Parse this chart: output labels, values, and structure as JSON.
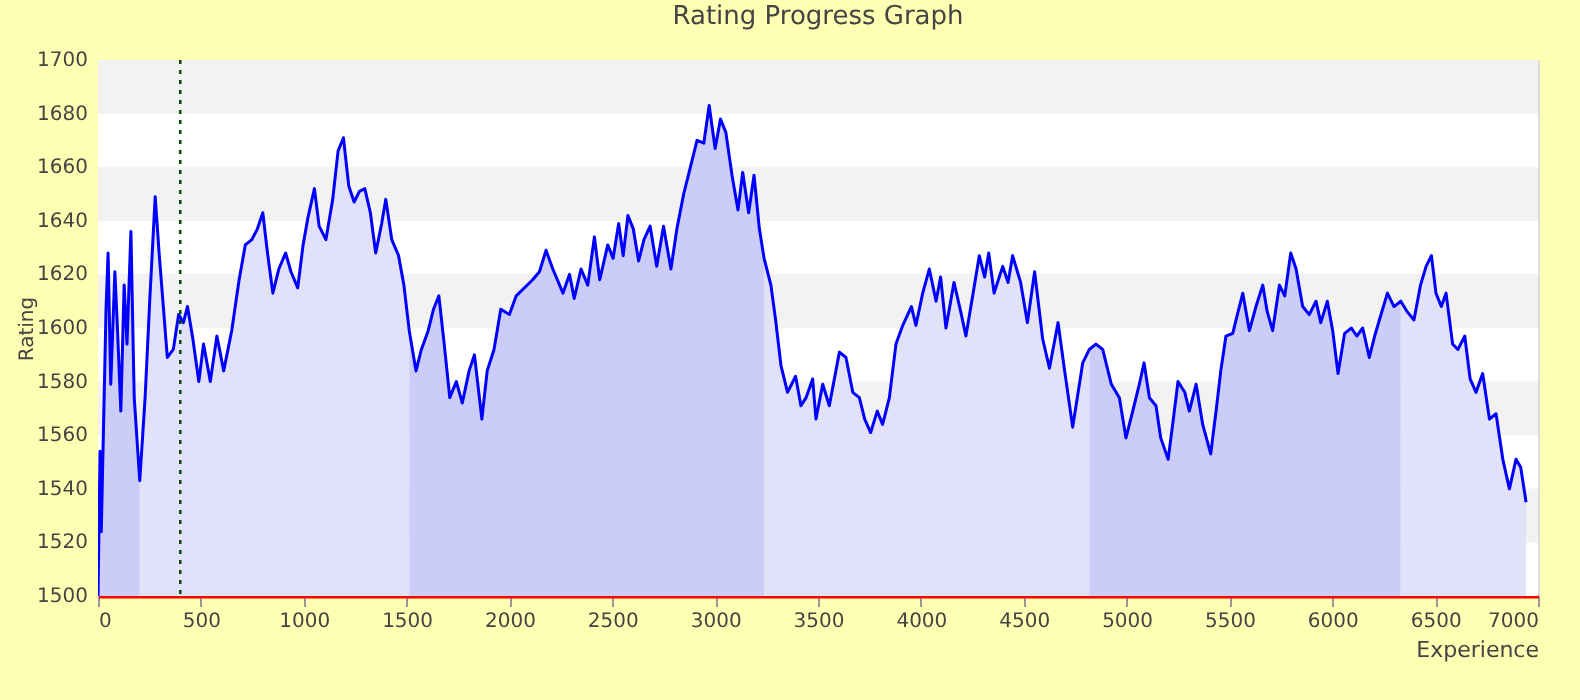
{
  "chart_data": {
    "type": "line",
    "title": "Rating Progress Graph",
    "xlabel": "Experience",
    "ylabel": "Rating",
    "xlim": [
      0,
      7000
    ],
    "xticks": [
      0,
      500,
      1000,
      1500,
      2000,
      2500,
      3000,
      3500,
      4000,
      4500,
      5000,
      5500,
      6000,
      6500,
      7000
    ],
    "ylim": [
      1500,
      1700
    ],
    "yticks": [
      1500,
      1520,
      1540,
      1560,
      1580,
      1600,
      1620,
      1640,
      1660,
      1680,
      1700
    ],
    "grid": "y",
    "marker": "none",
    "line_style": "solid",
    "ref_lines": [
      {
        "axis": "x",
        "value": 400,
        "color": "#004400",
        "line_style": "dotted"
      }
    ],
    "series": [
      {
        "type": "area",
        "color": "#ccccf9",
        "x": [
          0,
          10,
          16,
          39,
          49,
          62,
          82,
          95,
          111,
          127,
          141,
          160,
          176,
          203
        ],
        "values": [
          1500,
          1554,
          1524,
          1607,
          1628,
          1579,
          1621,
          1599,
          1569,
          1616,
          1594,
          1636,
          1574,
          1543
        ]
      },
      {
        "type": "area",
        "color": "#e1e1fa",
        "x": [
          203,
          229,
          252,
          278,
          297,
          337,
          366,
          392,
          415,
          435,
          461,
          490,
          513,
          546,
          578,
          611,
          650,
          686,
          716,
          748,
          775,
          801,
          824,
          850,
          879,
          912,
          938,
          971,
          997,
          1020,
          1052,
          1075,
          1108,
          1141,
          1167,
          1193,
          1219,
          1245,
          1271,
          1297,
          1324,
          1350,
          1379,
          1399,
          1428,
          1461,
          1487,
          1513
        ],
        "values": [
          1543,
          1574,
          1611,
          1649,
          1628,
          1589,
          1592,
          1605,
          1602,
          1608,
          1596,
          1580,
          1594,
          1580,
          1597,
          1584,
          1599,
          1618,
          1631,
          1633,
          1637,
          1643,
          1628,
          1613,
          1622,
          1628,
          1621,
          1615,
          1631,
          1641,
          1652,
          1638,
          1633,
          1648,
          1666,
          1671,
          1653,
          1647,
          1651,
          1652,
          1643,
          1628,
          1639,
          1648,
          1633,
          1627,
          1616,
          1599
        ]
      },
      {
        "type": "area",
        "color": "#ccccf9",
        "x": [
          1513,
          1546,
          1572,
          1605,
          1631,
          1657,
          1683,
          1710,
          1742,
          1771,
          1804,
          1830,
          1866,
          1892,
          1925,
          1958,
          2000,
          2033,
          2113,
          2146,
          2178,
          2211,
          2260,
          2292,
          2315,
          2348,
          2381,
          2413,
          2439,
          2478,
          2504,
          2531,
          2553,
          2576,
          2602,
          2628,
          2654,
          2684,
          2716,
          2749,
          2785,
          2814,
          2847,
          2870,
          2912,
          2945,
          2971,
          3000,
          3026,
          3052,
          3082,
          3111,
          3134,
          3163,
          3189,
          3215,
          3238
        ],
        "values": [
          1599,
          1584,
          1592,
          1599,
          1607,
          1612,
          1594,
          1574,
          1580,
          1572,
          1584,
          1590,
          1566,
          1584,
          1592,
          1607,
          1605,
          1612,
          1618,
          1621,
          1629,
          1622,
          1613,
          1620,
          1611,
          1622,
          1616,
          1634,
          1618,
          1631,
          1626,
          1639,
          1627,
          1642,
          1637,
          1625,
          1633,
          1638,
          1623,
          1638,
          1622,
          1637,
          1650,
          1657,
          1670,
          1669,
          1683,
          1667,
          1678,
          1673,
          1657,
          1644,
          1658,
          1643,
          1657,
          1637,
          1626
        ]
      },
      {
        "type": "area",
        "color": "#e1e1fa",
        "x": [
          3238,
          3271,
          3294,
          3320,
          3352,
          3391,
          3417,
          3442,
          3474,
          3490,
          3523,
          3555,
          3604,
          3636,
          3669,
          3701,
          3727,
          3756,
          3788,
          3814,
          3847,
          3879,
          3912,
          3954,
          3976,
          4009,
          4041,
          4074,
          4096,
          4122,
          4161,
          4194,
          4219,
          4252,
          4284,
          4310,
          4330,
          4356,
          4398,
          4424,
          4446,
          4485,
          4518,
          4553,
          4592,
          4625,
          4667,
          4699,
          4738,
          4787,
          4819
        ],
        "values": [
          1626,
          1616,
          1603,
          1586,
          1576,
          1582,
          1571,
          1574,
          1581,
          1566,
          1579,
          1571,
          1591,
          1589,
          1576,
          1574,
          1566,
          1561,
          1569,
          1564,
          1574,
          1594,
          1601,
          1608,
          1601,
          1613,
          1622,
          1610,
          1619,
          1600,
          1617,
          1606,
          1597,
          1612,
          1627,
          1619,
          1628,
          1613,
          1623,
          1617,
          1627,
          1617,
          1602,
          1621,
          1596,
          1585,
          1602,
          1584,
          1563,
          1587,
          1592
        ]
      },
      {
        "type": "area",
        "color": "#ccccf9",
        "x": [
          4819,
          4851,
          4884,
          4926,
          4965,
          4997,
          5030,
          5062,
          5085,
          5111,
          5143,
          5166,
          5202,
          5224,
          5250,
          5283,
          5305,
          5338,
          5370,
          5409,
          5435,
          5458,
          5483,
          5516,
          5542,
          5565,
          5597,
          5629,
          5662,
          5684,
          5710,
          5743,
          5769,
          5798,
          5824,
          5856,
          5888,
          5921,
          5944,
          5976,
          6002,
          6028,
          6060,
          6093,
          6119,
          6148,
          6180,
          6206,
          6229,
          6268,
          6300,
          6333
        ],
        "values": [
          1592,
          1594,
          1592,
          1579,
          1574,
          1559,
          1569,
          1579,
          1587,
          1574,
          1571,
          1559,
          1551,
          1564,
          1580,
          1576,
          1569,
          1579,
          1564,
          1553,
          1569,
          1584,
          1597,
          1598,
          1606,
          1613,
          1599,
          1608,
          1616,
          1606,
          1599,
          1616,
          1612,
          1628,
          1622,
          1608,
          1605,
          1610,
          1602,
          1610,
          1599,
          1583,
          1598,
          1600,
          1597,
          1600,
          1589,
          1597,
          1603,
          1613,
          1608,
          1610
        ]
      },
      {
        "type": "area",
        "color": "#e1e1fa",
        "x": [
          6333,
          6365,
          6397,
          6429,
          6456,
          6482,
          6504,
          6530,
          6553,
          6585,
          6611,
          6644,
          6670,
          6699,
          6731,
          6764,
          6796,
          6829,
          6861,
          6893,
          6916,
          6942
        ],
        "values": [
          1610,
          1606,
          1603,
          1616,
          1623,
          1627,
          1613,
          1608,
          1613,
          1594,
          1592,
          1597,
          1581,
          1576,
          1583,
          1566,
          1568,
          1551,
          1540,
          1551,
          1548,
          1535
        ]
      },
      {
        "type": "line",
        "color": "#0000ff",
        "x": [
          0,
          10,
          16,
          39,
          49,
          62,
          82,
          95,
          111,
          127,
          141,
          160,
          176,
          203,
          229,
          252,
          278,
          297,
          337,
          366,
          392,
          415,
          435,
          461,
          490,
          513,
          546,
          578,
          611,
          650,
          686,
          716,
          748,
          775,
          801,
          824,
          850,
          879,
          912,
          938,
          971,
          997,
          1020,
          1052,
          1075,
          1108,
          1141,
          1167,
          1193,
          1219,
          1245,
          1271,
          1297,
          1324,
          1350,
          1379,
          1399,
          1428,
          1461,
          1487,
          1513,
          1546,
          1572,
          1605,
          1631,
          1657,
          1683,
          1710,
          1742,
          1771,
          1804,
          1830,
          1866,
          1892,
          1925,
          1958,
          2000,
          2033,
          2113,
          2146,
          2178,
          2211,
          2260,
          2292,
          2315,
          2348,
          2381,
          2413,
          2439,
          2478,
          2504,
          2531,
          2553,
          2576,
          2602,
          2628,
          2654,
          2684,
          2716,
          2749,
          2785,
          2814,
          2847,
          2870,
          2912,
          2945,
          2971,
          3000,
          3026,
          3052,
          3082,
          3111,
          3134,
          3163,
          3189,
          3215,
          3238,
          3271,
          3294,
          3320,
          3352,
          3391,
          3417,
          3442,
          3474,
          3490,
          3523,
          3555,
          3604,
          3636,
          3669,
          3701,
          3727,
          3756,
          3788,
          3814,
          3847,
          3879,
          3912,
          3954,
          3976,
          4009,
          4041,
          4074,
          4096,
          4122,
          4161,
          4194,
          4219,
          4252,
          4284,
          4310,
          4330,
          4356,
          4398,
          4424,
          4446,
          4485,
          4518,
          4553,
          4592,
          4625,
          4667,
          4699,
          4738,
          4787,
          4819,
          4851,
          4884,
          4926,
          4965,
          4997,
          5030,
          5062,
          5085,
          5111,
          5143,
          5166,
          5202,
          5224,
          5250,
          5283,
          5305,
          5338,
          5370,
          5409,
          5435,
          5458,
          5483,
          5516,
          5542,
          5565,
          5597,
          5629,
          5662,
          5684,
          5710,
          5743,
          5769,
          5798,
          5824,
          5856,
          5888,
          5921,
          5944,
          5976,
          6002,
          6028,
          6060,
          6093,
          6119,
          6148,
          6180,
          6206,
          6229,
          6268,
          6300,
          6333,
          6365,
          6397,
          6429,
          6456,
          6482,
          6504,
          6530,
          6553,
          6585,
          6611,
          6644,
          6670,
          6699,
          6731,
          6764,
          6796,
          6829,
          6861,
          6893,
          6916,
          6942
        ],
        "values": [
          1500,
          1554,
          1524,
          1607,
          1628,
          1579,
          1621,
          1599,
          1569,
          1616,
          1594,
          1636,
          1574,
          1543,
          1574,
          1611,
          1649,
          1628,
          1589,
          1592,
          1605,
          1602,
          1608,
          1596,
          1580,
          1594,
          1580,
          1597,
          1584,
          1599,
          1618,
          1631,
          1633,
          1637,
          1643,
          1628,
          1613,
          1622,
          1628,
          1621,
          1615,
          1631,
          1641,
          1652,
          1638,
          1633,
          1648,
          1666,
          1671,
          1653,
          1647,
          1651,
          1652,
          1643,
          1628,
          1639,
          1648,
          1633,
          1627,
          1616,
          1599,
          1584,
          1592,
          1599,
          1607,
          1612,
          1594,
          1574,
          1580,
          1572,
          1584,
          1590,
          1566,
          1584,
          1592,
          1607,
          1605,
          1612,
          1618,
          1621,
          1629,
          1622,
          1613,
          1620,
          1611,
          1622,
          1616,
          1634,
          1618,
          1631,
          1626,
          1639,
          1627,
          1642,
          1637,
          1625,
          1633,
          1638,
          1623,
          1638,
          1622,
          1637,
          1650,
          1657,
          1670,
          1669,
          1683,
          1667,
          1678,
          1673,
          1657,
          1644,
          1658,
          1643,
          1657,
          1637,
          1626,
          1616,
          1603,
          1586,
          1576,
          1582,
          1571,
          1574,
          1581,
          1566,
          1579,
          1571,
          1591,
          1589,
          1576,
          1574,
          1566,
          1561,
          1569,
          1564,
          1574,
          1594,
          1601,
          1608,
          1601,
          1613,
          1622,
          1610,
          1619,
          1600,
          1617,
          1606,
          1597,
          1612,
          1627,
          1619,
          1628,
          1613,
          1623,
          1617,
          1627,
          1617,
          1602,
          1621,
          1596,
          1585,
          1602,
          1584,
          1563,
          1587,
          1592,
          1594,
          1592,
          1579,
          1574,
          1559,
          1569,
          1579,
          1587,
          1574,
          1571,
          1559,
          1551,
          1564,
          1580,
          1576,
          1569,
          1579,
          1564,
          1553,
          1569,
          1584,
          1597,
          1598,
          1606,
          1613,
          1599,
          1608,
          1616,
          1606,
          1599,
          1616,
          1612,
          1628,
          1622,
          1608,
          1605,
          1610,
          1602,
          1610,
          1599,
          1583,
          1598,
          1600,
          1597,
          1600,
          1589,
          1597,
          1603,
          1613,
          1608,
          1610,
          1606,
          1603,
          1616,
          1623,
          1627,
          1613,
          1608,
          1613,
          1594,
          1592,
          1597,
          1581,
          1576,
          1583,
          1566,
          1568,
          1551,
          1540,
          1551,
          1548,
          1535
        ]
      }
    ]
  }
}
